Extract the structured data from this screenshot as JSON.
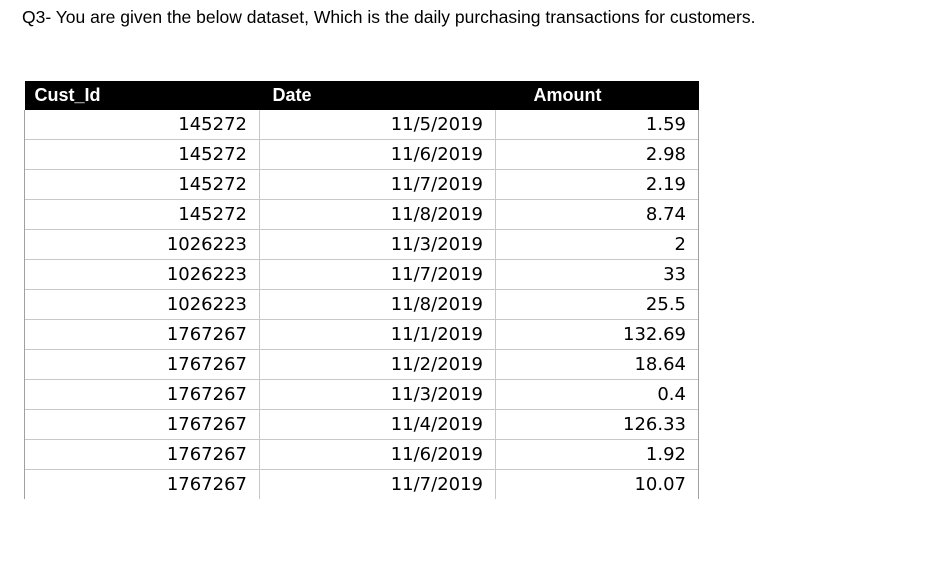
{
  "question": "Q3- You are given the below dataset, Which is the daily purchasing transactions for customers.",
  "table": {
    "headers": [
      "Cust_Id",
      "Date",
      "Amount"
    ],
    "rows": [
      [
        "145272",
        "11/5/2019",
        "1.59"
      ],
      [
        "145272",
        "11/6/2019",
        "2.98"
      ],
      [
        "145272",
        "11/7/2019",
        "2.19"
      ],
      [
        "145272",
        "11/8/2019",
        "8.74"
      ],
      [
        "1026223",
        "11/3/2019",
        "2"
      ],
      [
        "1026223",
        "11/7/2019",
        "33"
      ],
      [
        "1026223",
        "11/8/2019",
        "25.5"
      ],
      [
        "1767267",
        "11/1/2019",
        "132.69"
      ],
      [
        "1767267",
        "11/2/2019",
        "18.64"
      ],
      [
        "1767267",
        "11/3/2019",
        "0.4"
      ],
      [
        "1767267",
        "11/4/2019",
        "126.33"
      ],
      [
        "1767267",
        "11/6/2019",
        "1.92"
      ],
      [
        "1767267",
        "11/7/2019",
        "10.07"
      ]
    ]
  }
}
